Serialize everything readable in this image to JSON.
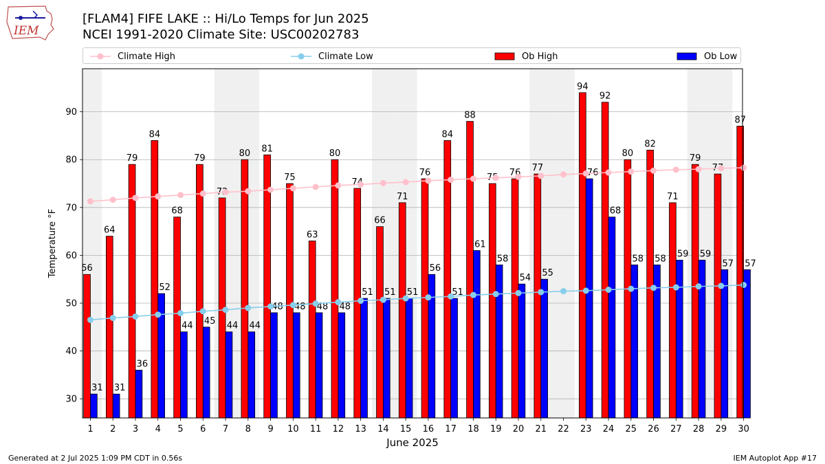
{
  "header": {
    "title_line1": "[FLAM4] FIFE LAKE :: Hi/Lo Temps for Jun 2025",
    "title_line2": "NCEI 1991-2020 Climate Site: USC00202783",
    "logo_text": "IEM"
  },
  "footer": {
    "generated": "Generated at 2 Jul 2025 1:09 PM CDT in 0.56s",
    "app": "IEM Autoplot App #17"
  },
  "colors": {
    "climate_high": "#ffc0cb",
    "climate_low": "#87ceeb",
    "ob_high": "#ff0000",
    "ob_low": "#0000ff",
    "weekend_shade": "#f0f0f0",
    "grid": "#b0b0b0"
  },
  "chart_data": {
    "type": "bar",
    "xlabel": "June 2025",
    "ylabel": "Temperature °F",
    "ylim": [
      26,
      99
    ],
    "yticks": [
      30,
      40,
      50,
      60,
      70,
      80,
      90
    ],
    "grid": "horizontal",
    "legend_position": "top",
    "categories": [
      "1",
      "2",
      "3",
      "4",
      "5",
      "6",
      "7",
      "8",
      "9",
      "10",
      "11",
      "12",
      "13",
      "14",
      "15",
      "16",
      "17",
      "18",
      "19",
      "20",
      "21",
      "22",
      "23",
      "24",
      "25",
      "26",
      "27",
      "28",
      "29",
      "30"
    ],
    "shaded_days": [
      1,
      7,
      8,
      14,
      15,
      21,
      22,
      28,
      29
    ],
    "series": [
      {
        "name": "Ob High",
        "kind": "bar",
        "values": [
          56,
          64,
          79,
          84,
          68,
          79,
          72,
          80,
          81,
          75,
          63,
          80,
          74,
          66,
          71,
          76,
          84,
          88,
          75,
          76,
          77,
          null,
          94,
          92,
          80,
          82,
          71,
          79,
          77,
          87
        ]
      },
      {
        "name": "Ob Low",
        "kind": "bar",
        "values": [
          31,
          31,
          36,
          52,
          44,
          45,
          44,
          44,
          48,
          48,
          48,
          48,
          51,
          51,
          51,
          56,
          51,
          61,
          58,
          54,
          55,
          null,
          76,
          68,
          58,
          58,
          59,
          59,
          57,
          57
        ]
      },
      {
        "name": "Climate High",
        "kind": "line",
        "values": [
          71.3,
          71.6,
          72.0,
          72.3,
          72.6,
          72.9,
          73.2,
          73.4,
          73.7,
          74.0,
          74.3,
          74.6,
          74.8,
          75.1,
          75.3,
          75.6,
          75.8,
          76.0,
          76.2,
          76.4,
          76.6,
          76.9,
          77.1,
          77.3,
          77.5,
          77.7,
          77.9,
          78.0,
          78.2,
          78.3
        ]
      },
      {
        "name": "Climate Low",
        "kind": "line",
        "values": [
          46.5,
          46.9,
          47.2,
          47.6,
          47.9,
          48.3,
          48.6,
          49.0,
          49.3,
          49.6,
          49.9,
          50.2,
          50.5,
          50.7,
          51.0,
          51.2,
          51.4,
          51.7,
          51.9,
          52.1,
          52.3,
          52.5,
          52.6,
          52.8,
          53.0,
          53.2,
          53.3,
          53.5,
          53.6,
          53.8
        ]
      }
    ]
  }
}
